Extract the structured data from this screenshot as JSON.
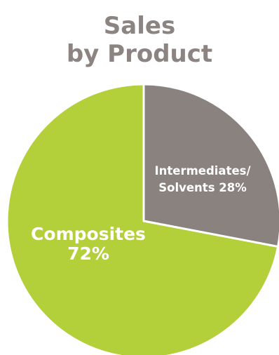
{
  "chart_data": {
    "type": "pie",
    "title_lines": [
      "Sales",
      "by Product"
    ],
    "slices": [
      {
        "label_lines": [
          "Intermediates/",
          "Solvents 28%"
        ],
        "value": 28,
        "color": "#8a827f"
      },
      {
        "label_lines": [
          "Composites",
          "72%"
        ],
        "value": 72,
        "color": "#b3cf3a"
      }
    ],
    "start_angle_deg": 0,
    "direction": "clockwise",
    "legend": "none"
  }
}
